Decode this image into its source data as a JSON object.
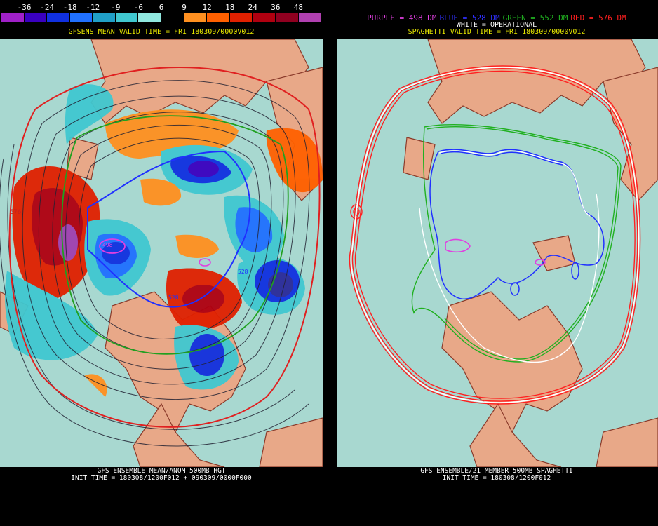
{
  "legend": {
    "ticks": [
      "-36",
      "-24",
      "-18",
      "-12",
      "-9",
      "-6",
      "6",
      "9",
      "12",
      "18",
      "24",
      "36",
      "48"
    ],
    "colors": [
      "#a020c8",
      "#3a00c0",
      "#1030e0",
      "#2070ff",
      "#20a0c8",
      "#40c8d0",
      "#90e8e0",
      "#000000",
      "#ff9020",
      "#ff6000",
      "#e02000",
      "#b00010",
      "#900020",
      "#b040b0"
    ]
  },
  "left_panel": {
    "title": "GFSENS MEAN VALID TIME = FRI 180309/0000V012",
    "footer_line1": "GFS ENSEMBLE MEAN/ANOM 500MB HGT",
    "footer_line2": "INIT TIME = 180308/1200F012 + 090309/0000F000",
    "labels": [
      "576",
      "498",
      "528",
      "528"
    ]
  },
  "right_panel": {
    "legend": [
      {
        "text": "PURPLE = 498 DM",
        "color": "#e040e0"
      },
      {
        "text": "BLUE = 528 DM",
        "color": "#3030ff"
      },
      {
        "text": "GREEN = 552 DM",
        "color": "#20b020"
      },
      {
        "text": "RED = 576 DM",
        "color": "#ff2020"
      }
    ],
    "title": "SPAGHETTI VALID TIME = FRI 180309/0000V012",
    "operational": "WHITE = OPERATIONAL",
    "footer_line1": "GFS ENSEMBLE/21 MEMBER 500MB SPAGHETTI",
    "footer_line2": "INIT TIME = 180308/1200F012"
  },
  "map_colors": {
    "ocean": "#a8d8d0",
    "land": "#e8a888",
    "coast": "#8a3a2a"
  }
}
